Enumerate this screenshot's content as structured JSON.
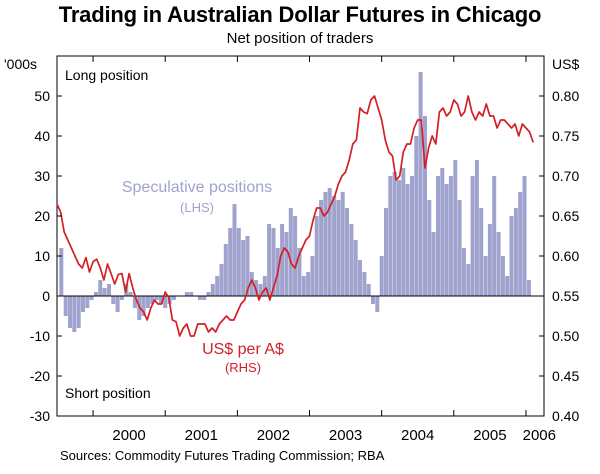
{
  "title": "Trading in Australian Dollar Futures in Chicago",
  "subtitle": "Net position of traders",
  "source": "Sources:  Commodity Futures Trading Commission; RBA",
  "colors": {
    "speculative": "#9fa3cd",
    "exchange_rate": "#d32027",
    "axis": "#000000"
  },
  "chart_data": {
    "type": "bar",
    "left_axis": {
      "unit": "'000s",
      "ticks": [
        50,
        40,
        30,
        20,
        10,
        0,
        -10,
        -20,
        -30
      ],
      "ylim": [
        -30,
        60
      ]
    },
    "right_axis": {
      "unit": "US$",
      "ticks": [
        "0.80",
        "0.75",
        "0.70",
        "0.65",
        "0.60",
        "0.55",
        "0.50",
        "0.45",
        "0.40"
      ],
      "ylim": [
        0.4,
        0.85
      ]
    },
    "x_ticks": [
      "2000",
      "2001",
      "2002",
      "2003",
      "2004",
      "2005",
      "2006"
    ],
    "x_range": [
      1999.5,
      2006.25
    ],
    "grid": false,
    "annotations": {
      "long": "Long position",
      "short": "Short position",
      "spec_label": "Speculative positions",
      "spec_side": "(LHS)",
      "fx_label": "US$ per A$",
      "fx_side": "(RHS)"
    },
    "series": [
      {
        "name": "Speculative positions",
        "axis": "left",
        "render": "bars",
        "x": [
          1999.56,
          1999.62,
          1999.68,
          1999.74,
          1999.8,
          1999.86,
          1999.92,
          1999.98,
          2000.04,
          2000.1,
          2000.16,
          2000.22,
          2000.28,
          2000.34,
          2000.4,
          2000.46,
          2000.52,
          2000.58,
          2000.64,
          2000.7,
          2000.76,
          2000.82,
          2000.88,
          2000.94,
          2001.0,
          2001.06,
          2001.12,
          2001.18,
          2001.24,
          2001.3,
          2001.36,
          2001.42,
          2001.48,
          2001.54,
          2001.6,
          2001.66,
          2001.72,
          2001.78,
          2001.84,
          2001.9,
          2001.96,
          2002.02,
          2002.08,
          2002.14,
          2002.2,
          2002.26,
          2002.32,
          2002.38,
          2002.44,
          2002.5,
          2002.56,
          2002.62,
          2002.68,
          2002.74,
          2002.8,
          2002.86,
          2002.92,
          2002.98,
          2003.04,
          2003.1,
          2003.16,
          2003.22,
          2003.28,
          2003.34,
          2003.4,
          2003.46,
          2003.52,
          2003.58,
          2003.64,
          2003.7,
          2003.76,
          2003.82,
          2003.88,
          2003.94,
          2004.0,
          2004.06,
          2004.12,
          2004.18,
          2004.24,
          2004.3,
          2004.36,
          2004.42,
          2004.48,
          2004.54,
          2004.6,
          2004.66,
          2004.72,
          2004.78,
          2004.84,
          2004.9,
          2004.96,
          2005.02,
          2005.08,
          2005.14,
          2005.2,
          2005.26,
          2005.32,
          2005.38,
          2005.44,
          2005.5,
          2005.56,
          2005.62,
          2005.68,
          2005.74,
          2005.8,
          2005.86,
          2005.92,
          2005.98,
          2006.04
        ],
        "values": [
          12,
          -5,
          -8,
          -9,
          -8,
          -4,
          -3,
          -1,
          1,
          4,
          2,
          3,
          -2,
          -4,
          -1,
          3,
          1,
          -3,
          -6,
          -5,
          -3,
          -2,
          -1,
          -2,
          -3,
          -2,
          -1,
          0,
          0,
          1,
          1,
          0,
          -1,
          -1,
          1,
          3,
          5,
          8,
          13,
          17,
          23,
          17,
          14,
          15,
          6,
          4,
          3,
          5,
          18,
          17,
          12,
          18,
          16,
          22,
          20,
          12,
          5,
          6,
          10,
          20,
          24,
          26,
          27,
          25,
          24,
          26,
          22,
          18,
          14,
          9,
          6,
          3,
          -2,
          -4,
          10,
          22,
          30,
          31,
          29,
          32,
          28,
          30,
          40,
          56,
          45,
          24,
          16,
          30,
          32,
          28,
          30,
          34,
          24,
          12,
          8,
          30,
          34,
          22,
          10,
          18,
          30,
          16,
          10,
          5,
          20,
          22,
          26,
          30,
          4
        ]
      },
      {
        "name": "US$ per A$",
        "axis": "right",
        "render": "line",
        "x": [
          1999.5,
          1999.55,
          1999.6,
          1999.65,
          1999.7,
          1999.75,
          1999.8,
          1999.85,
          1999.9,
          1999.95,
          2000.0,
          2000.05,
          2000.1,
          2000.15,
          2000.2,
          2000.25,
          2000.3,
          2000.35,
          2000.4,
          2000.45,
          2000.5,
          2000.55,
          2000.6,
          2000.65,
          2000.7,
          2000.75,
          2000.8,
          2000.85,
          2000.9,
          2000.95,
          2001.0,
          2001.05,
          2001.1,
          2001.15,
          2001.2,
          2001.25,
          2001.3,
          2001.35,
          2001.4,
          2001.45,
          2001.5,
          2001.55,
          2001.6,
          2001.65,
          2001.7,
          2001.75,
          2001.8,
          2001.85,
          2001.9,
          2001.95,
          2002.0,
          2002.05,
          2002.1,
          2002.15,
          2002.2,
          2002.25,
          2002.3,
          2002.35,
          2002.4,
          2002.45,
          2002.5,
          2002.55,
          2002.6,
          2002.65,
          2002.7,
          2002.75,
          2002.8,
          2002.85,
          2002.9,
          2002.95,
          2003.0,
          2003.05,
          2003.1,
          2003.15,
          2003.2,
          2003.25,
          2003.3,
          2003.35,
          2003.4,
          2003.45,
          2003.5,
          2003.55,
          2003.6,
          2003.65,
          2003.7,
          2003.75,
          2003.8,
          2003.85,
          2003.9,
          2003.95,
          2004.0,
          2004.05,
          2004.1,
          2004.15,
          2004.2,
          2004.25,
          2004.3,
          2004.35,
          2004.4,
          2004.45,
          2004.5,
          2004.55,
          2004.6,
          2004.65,
          2004.7,
          2004.75,
          2004.8,
          2004.85,
          2004.9,
          2004.95,
          2005.0,
          2005.05,
          2005.1,
          2005.15,
          2005.2,
          2005.25,
          2005.3,
          2005.35,
          2005.4,
          2005.45,
          2005.5,
          2005.55,
          2005.6,
          2005.65,
          2005.7,
          2005.75,
          2005.8,
          2005.85,
          2005.9,
          2005.95,
          2006.0,
          2006.05,
          2006.1
        ],
        "values": [
          0.665,
          0.655,
          0.63,
          0.62,
          0.61,
          0.6,
          0.59,
          0.585,
          0.598,
          0.58,
          0.593,
          0.596,
          0.585,
          0.57,
          0.59,
          0.578,
          0.565,
          0.577,
          0.578,
          0.555,
          0.578,
          0.56,
          0.545,
          0.535,
          0.53,
          0.52,
          0.535,
          0.545,
          0.54,
          0.54,
          0.555,
          0.548,
          0.52,
          0.518,
          0.5,
          0.51,
          0.515,
          0.5,
          0.5,
          0.515,
          0.515,
          0.515,
          0.505,
          0.51,
          0.505,
          0.515,
          0.52,
          0.525,
          0.52,
          0.52,
          0.53,
          0.54,
          0.545,
          0.56,
          0.57,
          0.56,
          0.545,
          0.555,
          0.56,
          0.545,
          0.56,
          0.575,
          0.6,
          0.61,
          0.605,
          0.59,
          0.585,
          0.6,
          0.61,
          0.62,
          0.625,
          0.645,
          0.66,
          0.66,
          0.65,
          0.655,
          0.665,
          0.675,
          0.69,
          0.7,
          0.705,
          0.72,
          0.74,
          0.745,
          0.785,
          0.78,
          0.778,
          0.795,
          0.8,
          0.785,
          0.77,
          0.745,
          0.73,
          0.725,
          0.695,
          0.7,
          0.73,
          0.74,
          0.74,
          0.76,
          0.77,
          0.77,
          0.71,
          0.735,
          0.75,
          0.74,
          0.78,
          0.785,
          0.775,
          0.78,
          0.795,
          0.79,
          0.775,
          0.78,
          0.8,
          0.78,
          0.77,
          0.78,
          0.775,
          0.79,
          0.775,
          0.775,
          0.76,
          0.77,
          0.77,
          0.765,
          0.76,
          0.765,
          0.75,
          0.765,
          0.76,
          0.755,
          0.742
        ]
      }
    ]
  }
}
